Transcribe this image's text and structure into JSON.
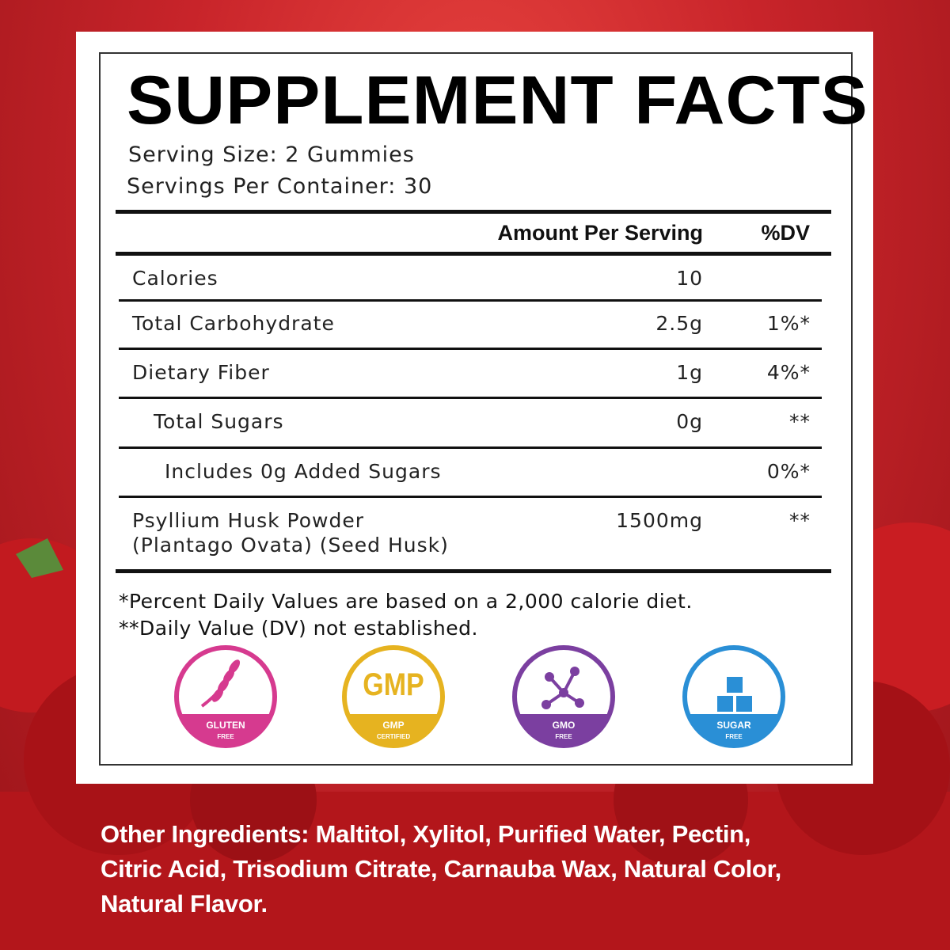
{
  "title": "SUPPLEMENT FACTS",
  "serving": [
    "Serving Size: 2 Gummies",
    "Servings Per Container: 30"
  ],
  "table": {
    "header": [
      "Amount Per Serving",
      "%DV"
    ],
    "rows": [
      {
        "name": [
          "Calories"
        ],
        "amount": "10"
      },
      {
        "name": [
          "Total Carbohydrate"
        ],
        "amount": "2.5g",
        "dv": "1%*"
      },
      {
        "name": [
          "Dietary Fiber"
        ],
        "amount": "1g",
        "dv": "4%*"
      },
      {
        "name": [
          "Total Sugars"
        ],
        "amount": "0g",
        "dv": "**"
      },
      {
        "name": [
          "Includes 0g Added Sugars"
        ],
        "dv": "0%*"
      },
      {
        "name": [
          "Psyllium Husk Powder",
          "(Plantago Ovata) (Seed Husk)"
        ],
        "amount": "1500mg",
        "dv": "**"
      }
    ]
  },
  "footnotes": [
    "*Percent Daily Values are based on a 2,000 calorie diet.",
    "**Daily Value (DV) not established."
  ],
  "badges": [
    {
      "top": "GLUTEN",
      "bottom": "FREE"
    },
    {
      "icon": "GMP",
      "top": "GMP",
      "bottom": "CERTIFIED"
    },
    {
      "top": "GMO",
      "bottom": "FREE"
    },
    {
      "top": "SUGAR",
      "bottom": "FREE"
    }
  ],
  "other_ingredients": [
    "Other Ingredients: Maltitol, Xylitol, Purified Water, Pectin,",
    "Citric Acid, Trisodium Citrate, Carnauba Wax, Natural Color,",
    "Natural Flavor."
  ]
}
